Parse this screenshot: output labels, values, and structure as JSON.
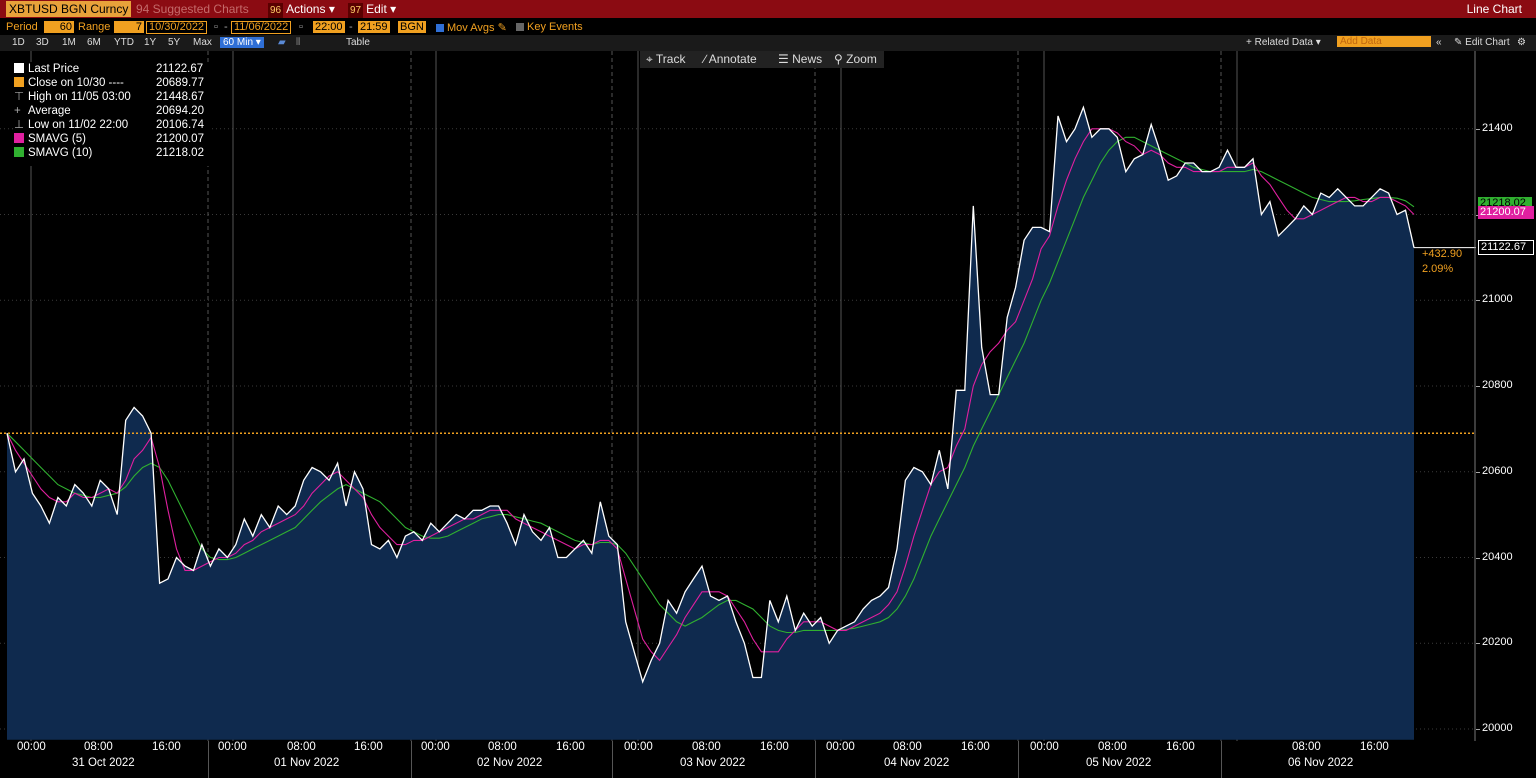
{
  "topbar": {
    "ticker": "XBTUSD BGN Curncy",
    "suggested": "94 Suggested Charts",
    "actions_num": "96",
    "actions": "Actions",
    "edit_num": "97",
    "edit": "Edit",
    "chart_type": "Line Chart"
  },
  "controls": {
    "period_label": "Period",
    "period_value": "60",
    "range_label": "Range",
    "range_value": "7",
    "start_date": "10/30/2022",
    "end_date": "11/06/2022",
    "start_time": "22:00",
    "end_time": "21:59",
    "source": "BGN",
    "mov_avgs": "Mov Avgs",
    "key_events": "Key Events"
  },
  "periods": [
    "1D",
    "3D",
    "1M",
    "6M",
    "YTD",
    "1Y",
    "5Y",
    "Max"
  ],
  "period_selected": "60 Min",
  "table_label": "Table",
  "related_data": "+ Related Data",
  "add_data_placeholder": "Add Data",
  "edit_chart": "Edit Chart",
  "tools": {
    "track": "Track",
    "annotate": "Annotate",
    "news": "News",
    "zoom": "Zoom"
  },
  "legend": [
    {
      "label": "Last Price",
      "value": "21122.67",
      "color": "#ffffff"
    },
    {
      "label": "Close on 10/30 ----",
      "value": "20689.77",
      "color": "#f0a020"
    },
    {
      "label": "High on 11/05 03:00",
      "value": "21448.67",
      "color": ""
    },
    {
      "label": "Average",
      "value": "20694.20",
      "color": ""
    },
    {
      "label": "Low on 11/02 22:00",
      "value": "20106.74",
      "color": ""
    },
    {
      "label": "SMAVG (5)",
      "value": "21200.07",
      "color": "#e020a0"
    },
    {
      "label": "SMAVG (10)",
      "value": "21218.02",
      "color": "#30b030"
    }
  ],
  "change": {
    "abs": "+432.90",
    "pct": "2.09%"
  },
  "axis_tags": {
    "smavg10": "21218.02",
    "smavg5": "21200.07",
    "last": "21122.67"
  },
  "colors": {
    "topbar": "#8b0b12",
    "orange": "#f0a020",
    "price_line": "#ffffff",
    "fill": "#0f2a4e",
    "sma5": "#e020a0",
    "sma10": "#30b030",
    "close_line": "#f0a020"
  },
  "chart_data": {
    "type": "area",
    "ylim": [
      20000,
      21600
    ],
    "yticks": [
      20000,
      20200,
      20400,
      20600,
      20800,
      21000,
      21200,
      21400
    ],
    "close_reference": 20689.77,
    "x_tick_labels": [
      "00:00",
      "08:00",
      "16:00",
      "00:00",
      "08:00",
      "16:00",
      "00:00",
      "08:00",
      "16:00",
      "00:00",
      "08:00",
      "16:00",
      "00:00",
      "08:00",
      "16:00",
      "00:00",
      "08:00",
      "16:00",
      "08:00",
      "16:00"
    ],
    "x_date_labels": [
      "31 Oct 2022",
      "01 Nov 2022",
      "02 Nov 2022",
      "03 Nov 2022",
      "04 Nov 2022",
      "05 Nov 2022",
      "06 Nov 2022"
    ],
    "series": [
      {
        "name": "Last Price",
        "values": [
          20690,
          20600,
          20630,
          20550,
          20520,
          20480,
          20540,
          20520,
          20570,
          20550,
          20520,
          20580,
          20560,
          20500,
          20720,
          20750,
          20730,
          20690,
          20340,
          20350,
          20400,
          20380,
          20370,
          20430,
          20380,
          20420,
          20400,
          20430,
          20490,
          20450,
          20500,
          20470,
          20520,
          20500,
          20520,
          20580,
          20610,
          20600,
          20580,
          20620,
          20520,
          20600,
          20560,
          20430,
          20420,
          20440,
          20400,
          20450,
          20460,
          20440,
          20480,
          20460,
          20480,
          20500,
          20490,
          20510,
          20510,
          20520,
          20520,
          20480,
          20430,
          20500,
          20460,
          20440,
          20470,
          20400,
          20400,
          20420,
          20440,
          20410,
          20530,
          20450,
          20430,
          20250,
          20180,
          20110,
          20160,
          20200,
          20300,
          20270,
          20320,
          20350,
          20380,
          20310,
          20300,
          20310,
          20250,
          20200,
          20120,
          20120,
          20300,
          20250,
          20310,
          20230,
          20270,
          20240,
          20260,
          20200,
          20230,
          20240,
          20250,
          20280,
          20300,
          20310,
          20330,
          20420,
          20580,
          20610,
          20600,
          20570,
          20650,
          20560,
          20790,
          20790,
          21220,
          20890,
          20780,
          20780,
          20960,
          21030,
          21140,
          21170,
          21170,
          21160,
          21430,
          21370,
          21400,
          21450,
          21380,
          21400,
          21400,
          21380,
          21300,
          21330,
          21340,
          21410,
          21350,
          21280,
          21290,
          21320,
          21320,
          21300,
          21300,
          21310,
          21350,
          21310,
          21310,
          21330,
          21200,
          21230,
          21150,
          21170,
          21190,
          21220,
          21200,
          21250,
          21240,
          21260,
          21240,
          21220,
          21220,
          21240,
          21260,
          21250,
          21200,
          21210,
          21122.67
        ]
      },
      {
        "name": "SMAVG (5)",
        "values": [
          20690,
          20650,
          20620,
          20590,
          20560,
          20540,
          20530,
          20530,
          20550,
          20540,
          20540,
          20550,
          20560,
          20550,
          20580,
          20630,
          20650,
          20680,
          20610,
          20510,
          20420,
          20370,
          20370,
          20380,
          20390,
          20400,
          20400,
          20410,
          20430,
          20440,
          20460,
          20470,
          20480,
          20490,
          20500,
          20520,
          20550,
          20570,
          20590,
          20600,
          20580,
          20560,
          20540,
          20500,
          20470,
          20450,
          20430,
          20430,
          20440,
          20440,
          20450,
          20460,
          20470,
          20480,
          20490,
          20490,
          20500,
          20510,
          20510,
          20510,
          20490,
          20480,
          20470,
          20460,
          20450,
          20440,
          20430,
          20420,
          20430,
          20430,
          20440,
          20440,
          20420,
          20350,
          20280,
          20210,
          20180,
          20160,
          20190,
          20220,
          20260,
          20290,
          20320,
          20320,
          20320,
          20310,
          20280,
          20250,
          20210,
          20180,
          20180,
          20180,
          20210,
          20230,
          20250,
          20250,
          20250,
          20240,
          20230,
          20230,
          20240,
          20250,
          20260,
          20270,
          20290,
          20320,
          20380,
          20450,
          20510,
          20570,
          20600,
          20610,
          20660,
          20700,
          20800,
          20850,
          20880,
          20900,
          20930,
          20950,
          21000,
          21050,
          21120,
          21150,
          21220,
          21280,
          21330,
          21370,
          21400,
          21400,
          21400,
          21390,
          21370,
          21360,
          21340,
          21350,
          21340,
          21320,
          21310,
          21310,
          21300,
          21300,
          21300,
          21300,
          21310,
          21310,
          21310,
          21320,
          21290,
          21270,
          21240,
          21210,
          21190,
          21190,
          21200,
          21210,
          21220,
          21230,
          21240,
          21240,
          21230,
          21230,
          21240,
          21240,
          21230,
          21220,
          21200.07
        ]
      },
      {
        "name": "SMAVG (10)",
        "values": [
          20690,
          20670,
          20650,
          20630,
          20610,
          20590,
          20570,
          20560,
          20550,
          20545,
          20540,
          20540,
          20545,
          20550,
          20565,
          20590,
          20610,
          20620,
          20610,
          20580,
          20540,
          20500,
          20460,
          20420,
          20400,
          20395,
          20395,
          20400,
          20410,
          20420,
          20430,
          20440,
          20450,
          20460,
          20470,
          20490,
          20510,
          20530,
          20545,
          20560,
          20570,
          20560,
          20550,
          20540,
          20530,
          20510,
          20490,
          20470,
          20460,
          20450,
          20445,
          20445,
          20450,
          20460,
          20470,
          20480,
          20490,
          20495,
          20500,
          20500,
          20495,
          20490,
          20485,
          20480,
          20470,
          20460,
          20450,
          20440,
          20435,
          20430,
          20435,
          20435,
          20430,
          20410,
          20380,
          20350,
          20320,
          20290,
          20270,
          20250,
          20240,
          20250,
          20260,
          20275,
          20290,
          20300,
          20300,
          20290,
          20280,
          20260,
          20240,
          20230,
          20225,
          20225,
          20230,
          20230,
          20230,
          20230,
          20230,
          20232,
          20235,
          20240,
          20245,
          20250,
          20260,
          20280,
          20310,
          20350,
          20400,
          20450,
          20490,
          20530,
          20570,
          20610,
          20660,
          20700,
          20740,
          20780,
          20820,
          20860,
          20900,
          20950,
          21000,
          21040,
          21090,
          21140,
          21190,
          21240,
          21280,
          21320,
          21350,
          21370,
          21380,
          21380,
          21370,
          21360,
          21350,
          21340,
          21330,
          21320,
          21310,
          21305,
          21300,
          21300,
          21300,
          21300,
          21300,
          21305,
          21300,
          21290,
          21280,
          21270,
          21260,
          21250,
          21240,
          21235,
          21230,
          21230,
          21230,
          21232,
          21235,
          21237,
          21240,
          21240,
          21238,
          21232,
          21218.02
        ]
      }
    ]
  }
}
